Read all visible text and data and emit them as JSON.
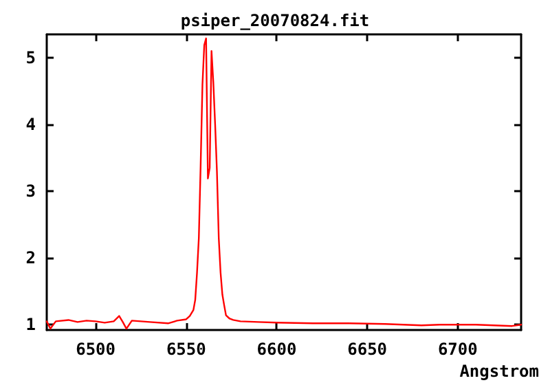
{
  "chart_data": {
    "type": "line",
    "title": "psiper_20070824.fit",
    "xlabel": "Angstrom",
    "x": [
      6473,
      6475,
      6478,
      6485,
      6490,
      6495,
      6500,
      6505,
      6510,
      6513,
      6515,
      6517,
      6520,
      6530,
      6540,
      6545,
      6550,
      6552,
      6554,
      6555,
      6556,
      6557,
      6558,
      6559,
      6560,
      6561,
      6562,
      6563,
      6564,
      6565,
      6566,
      6567,
      6568,
      6569,
      6570,
      6571,
      6572,
      6574,
      6576,
      6580,
      6590,
      6600,
      6620,
      6640,
      6660,
      6680,
      6690,
      6700,
      6710,
      6720,
      6730,
      6735
    ],
    "series": [
      {
        "color": "#ff0000",
        "values": [
          1.05,
          0.94,
          1.05,
          1.07,
          1.04,
          1.06,
          1.05,
          1.03,
          1.05,
          1.13,
          1.04,
          0.94,
          1.06,
          1.04,
          1.02,
          1.06,
          1.08,
          1.13,
          1.22,
          1.37,
          1.78,
          2.3,
          3.39,
          4.6,
          5.19,
          5.29,
          3.19,
          3.35,
          5.1,
          4.63,
          4.0,
          3.29,
          2.3,
          1.78,
          1.45,
          1.29,
          1.14,
          1.09,
          1.07,
          1.05,
          1.04,
          1.03,
          1.02,
          1.02,
          1.01,
          0.99,
          1.0,
          1.0,
          1.0,
          0.99,
          0.98,
          1.0
        ]
      }
    ],
    "xlim": [
      6473,
      6735
    ],
    "xticks": [
      6500,
      6550,
      6600,
      6650,
      6700
    ],
    "ylim": [
      0.92,
      5.35
    ],
    "yticks": [
      1,
      2,
      3,
      4,
      5
    ],
    "grid": false,
    "marker": "none",
    "line_style": "solid"
  }
}
